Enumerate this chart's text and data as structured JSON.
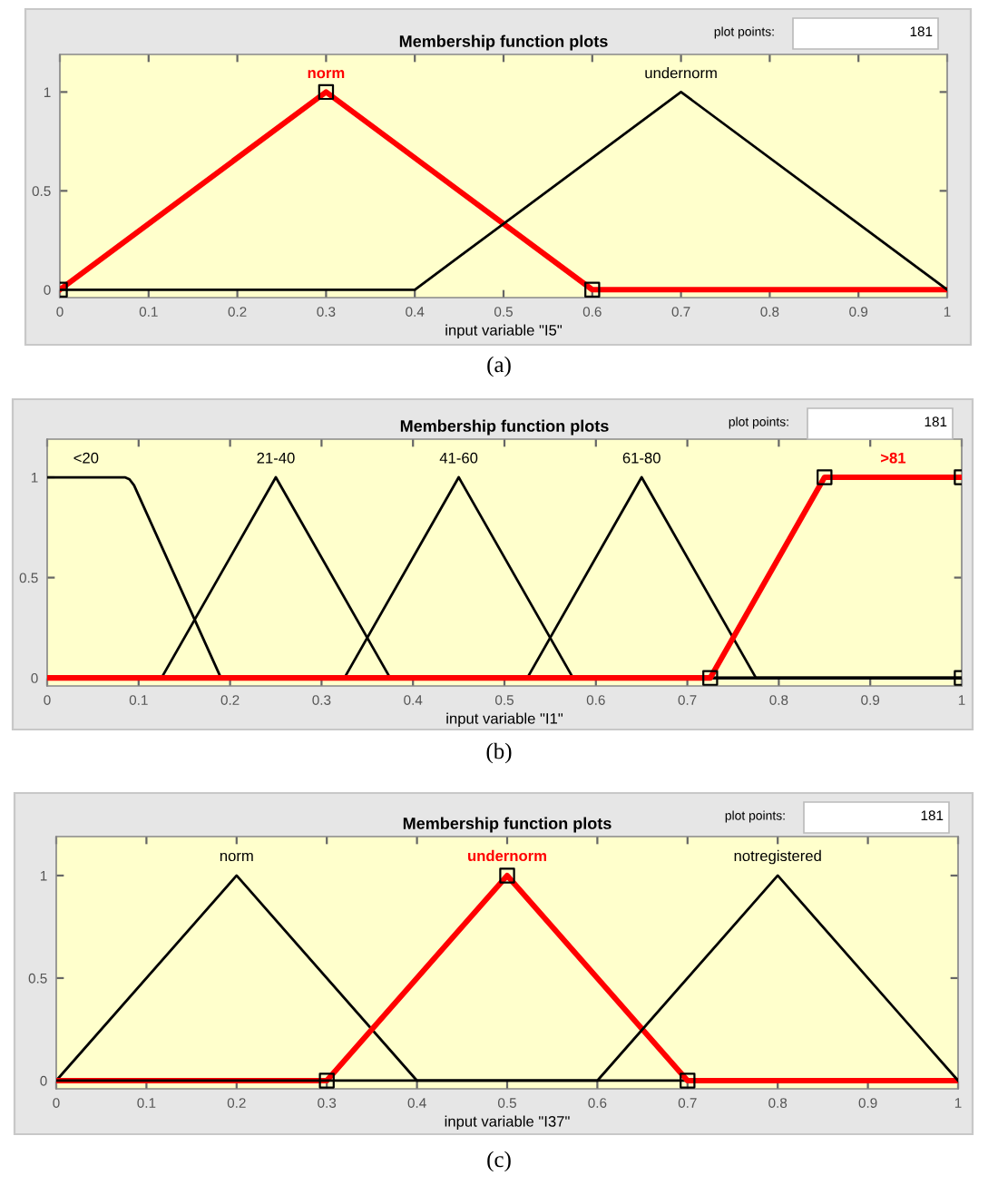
{
  "chart_data": [
    {
      "type": "line",
      "title": "Membership function plots",
      "xlabel": "input variable \"I5\"",
      "xlim": [
        0,
        1
      ],
      "xticks": [
        0,
        0.1,
        0.2,
        0.3,
        0.4,
        0.5,
        0.6,
        0.7,
        0.8,
        0.9,
        1
      ],
      "ylim": [
        -0.04,
        1.19
      ],
      "yticks": [
        0,
        0.5,
        1
      ],
      "marker": "none",
      "annotations": [
        "plot points:",
        "181",
        "(a)"
      ],
      "series": [
        {
          "name": "norm",
          "color": "#ff0000",
          "x": [
            0,
            0.3,
            0.6,
            1
          ],
          "values": [
            0,
            1,
            0,
            0
          ]
        },
        {
          "name": "undernorm",
          "color": "#000000",
          "x": [
            0,
            0.4,
            0.7,
            1
          ],
          "values": [
            0,
            0,
            1,
            0
          ]
        },
        {
          "type": "scatter",
          "marker": "square",
          "color": "#000000",
          "x": [
            0,
            0.3,
            0.6
          ],
          "values": [
            0,
            1,
            0
          ]
        }
      ]
    },
    {
      "type": "line",
      "title": "Membership function plots",
      "xlabel": "input variable \"I1\"",
      "xlim": [
        0,
        1
      ],
      "xticks": [
        0,
        0.1,
        0.2,
        0.3,
        0.4,
        0.5,
        0.6,
        0.7,
        0.8,
        0.9,
        1
      ],
      "ylim": [
        -0.04,
        1.19
      ],
      "yticks": [
        0,
        0.5,
        1
      ],
      "marker": "none",
      "annotations": [
        "plot points:",
        "181",
        "(b)"
      ],
      "series": [
        {
          "name": "<20",
          "color": "#000000",
          "x": [
            0,
            0.085,
            0.09,
            0.095,
            0.19,
            1
          ],
          "values": [
            1,
            1,
            0.99,
            0.96,
            0,
            0
          ]
        },
        {
          "name": "21-40",
          "color": "#000000",
          "x": [
            0,
            0.125,
            0.25,
            0.375,
            1
          ],
          "values": [
            0,
            0,
            1,
            0,
            0
          ]
        },
        {
          "name": "41-60",
          "color": "#000000",
          "x": [
            0,
            0.325,
            0.45,
            0.575,
            1
          ],
          "values": [
            0,
            0,
            1,
            0,
            0
          ]
        },
        {
          "name": "61-80",
          "color": "#000000",
          "x": [
            0,
            0.525,
            0.65,
            0.775,
            1
          ],
          "values": [
            0,
            0,
            1,
            0,
            0
          ]
        },
        {
          "name": ">81",
          "color": "#ff0000",
          "x": [
            0,
            0.725,
            0.85,
            1
          ],
          "values": [
            0,
            0,
            1,
            1
          ]
        },
        {
          "type": "scatter",
          "marker": "square",
          "color": "#000000",
          "x": [
            0.725,
            0.85,
            1,
            1
          ],
          "values": [
            0,
            1,
            1,
            0
          ]
        }
      ]
    },
    {
      "type": "line",
      "title": "Membership function plots",
      "xlabel": "input variable \"I37\"",
      "xlim": [
        0,
        1
      ],
      "xticks": [
        0,
        0.1,
        0.2,
        0.3,
        0.4,
        0.5,
        0.6,
        0.7,
        0.8,
        0.9,
        1
      ],
      "ylim": [
        -0.04,
        1.19
      ],
      "yticks": [
        0,
        0.5,
        1
      ],
      "marker": "none",
      "annotations": [
        "plot points:",
        "181",
        "(c)"
      ],
      "series": [
        {
          "name": "norm",
          "color": "#000000",
          "x": [
            0,
            0.2,
            0.4,
            1
          ],
          "values": [
            0,
            1,
            0,
            0
          ]
        },
        {
          "name": "undernorm",
          "color": "#ff0000",
          "x": [
            0,
            0.3,
            0.5,
            0.7,
            1
          ],
          "values": [
            0,
            0,
            1,
            0,
            0
          ]
        },
        {
          "name": "notregistered",
          "color": "#000000",
          "x": [
            0,
            0.6,
            0.8,
            1
          ],
          "values": [
            0,
            0,
            1,
            0
          ]
        },
        {
          "type": "scatter",
          "marker": "square",
          "color": "#000000",
          "x": [
            0.3,
            0.5,
            0.7
          ],
          "values": [
            0,
            1,
            0
          ]
        }
      ]
    }
  ]
}
